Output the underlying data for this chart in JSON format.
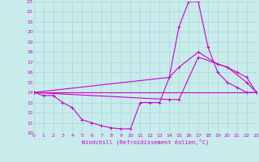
{
  "xlabel": "Windchill (Refroidissement éolien,°C)",
  "bg_color": "#c8ecec",
  "grid_color": "#b0d8d8",
  "line_color": "#cc00cc",
  "xmin": 0,
  "xmax": 23,
  "ymin": 10,
  "ymax": 23,
  "line1_x": [
    0,
    1,
    2,
    3,
    4,
    5,
    6,
    7,
    8,
    9,
    10,
    11,
    12,
    13,
    14,
    15,
    16,
    17,
    18,
    19,
    20,
    21,
    22,
    23
  ],
  "line1_y": [
    14,
    13.7,
    13.7,
    13.0,
    12.5,
    11.3,
    11.0,
    10.7,
    10.5,
    10.4,
    10.4,
    13.0,
    13.0,
    13.0,
    15.5,
    20.5,
    23.0,
    23.0,
    18.5,
    16.0,
    15.0,
    14.5,
    14.0,
    14.0
  ],
  "line2_x": [
    0,
    23
  ],
  "line2_y": [
    14,
    14
  ],
  "line3_x": [
    0,
    14,
    15,
    17,
    19,
    20,
    21,
    22,
    23
  ],
  "line3_y": [
    14,
    15.5,
    16.5,
    18.0,
    16.8,
    16.5,
    16.0,
    15.5,
    14.0
  ],
  "line4_x": [
    0,
    14,
    15,
    17,
    20,
    22,
    23
  ],
  "line4_y": [
    14,
    13.3,
    13.3,
    17.5,
    16.5,
    15.0,
    14.0
  ]
}
